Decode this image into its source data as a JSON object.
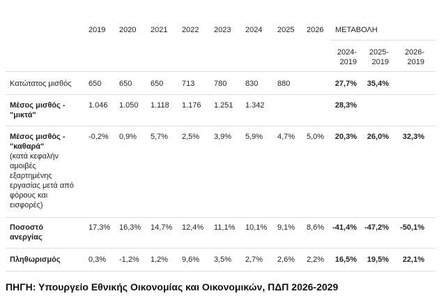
{
  "table": {
    "years": [
      "2019",
      "2020",
      "2021",
      "2022",
      "2023",
      "2024",
      "2025",
      "2026"
    ],
    "change_header": "ΜΕΤΑΒΟΛΗ",
    "change_columns": [
      "2024-\n2019",
      "2025-\n2019",
      "2026-\n2019"
    ],
    "rows": [
      {
        "label": "Κατώτατος μισθός",
        "bold": false,
        "cells": [
          "650",
          "650",
          "650",
          "713",
          "780",
          "830",
          "880",
          null,
          "27,7%",
          "35,4%",
          null
        ]
      },
      {
        "label": "Μέσος μισθός -\n\"μικτά\"",
        "bold": true,
        "cells": [
          "1.046",
          "1.050",
          "1.118",
          "1.176",
          "1.251",
          "1.342",
          null,
          null,
          "28,3%",
          null,
          null
        ]
      },
      {
        "label": "Μέσος μισθός -\n\"καθαρά\"",
        "bold": true,
        "note": "(κατά κεφαλήν\nαμοιβές\nεξαρτημένης\nεργασίας μετά από\nφόρους και\nεισφορές)",
        "cells": [
          "-0,2%",
          "0,9%",
          "5,7%",
          "2,5%",
          "3,9%",
          "5,9%",
          "4,7%",
          "5,0%",
          "20,3%",
          "26,0%",
          "32,3%"
        ]
      },
      {
        "label": "Ποσοστό\nανεργίας",
        "bold": true,
        "cells": [
          "17,3%",
          "16,3%",
          "14,7%",
          "12,4%",
          "11,1%",
          "10,1%",
          "9,1%",
          "8,6%",
          "-41,4%",
          "-47,2%",
          "-50,1%"
        ]
      },
      {
        "label": "Πληθωρισμός",
        "bold": true,
        "cells": [
          "0,3%",
          "-1,2%",
          "1,2%",
          "9,6%",
          "3,5%",
          "2,7%",
          "2,6%",
          "2,2%",
          "16,5%",
          "19,5%",
          "22,1%"
        ]
      }
    ]
  },
  "source": "ΠΗΓΗ: Υπουργείο Εθνικής Οικονομίας και Οικονομικών, ΠΔΠ 2026-2029"
}
